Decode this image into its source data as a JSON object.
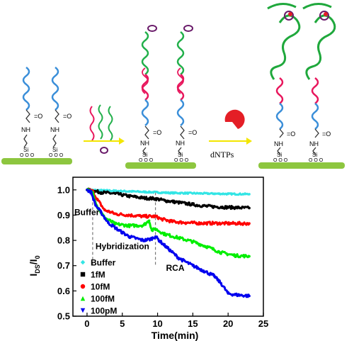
{
  "scheme": {
    "amide_o": "=O",
    "amide_nh": "NH",
    "si": "Si",
    "ooo": "O O O",
    "dntps": "dNTPs",
    "colors": {
      "substrate": "#8dc63f",
      "probe_blue": "#3b8fd9",
      "target_red": "#e8175d",
      "primer_green": "#22b04b",
      "template_purple": "#6a1b6a",
      "polymerase_red": "#e41e26",
      "arrow_yellow": "#f3e600",
      "rca_green": "#1fa83c"
    }
  },
  "chart_data": {
    "type": "scatter",
    "title": "",
    "xlabel": "Time(min)",
    "ylabel_main": "I",
    "ylabel_sub1": "DS",
    "ylabel_mid": "/I",
    "ylabel_sub2": "0",
    "xlim": [
      -2,
      25
    ],
    "ylim": [
      0.5,
      1.05
    ],
    "xticks": [
      0,
      5,
      10,
      15,
      20,
      25
    ],
    "yticks": [
      0.5,
      0.6,
      0.7,
      0.8,
      0.9,
      1.0
    ],
    "xtick_labels": [
      "0",
      "5",
      "10",
      "15",
      "20",
      "25"
    ],
    "ytick_labels": [
      "0.5",
      "0.6",
      "0.7",
      "0.8",
      "0.9",
      "1.0"
    ],
    "legend_position": "bottom-left",
    "annotations": [
      {
        "text": "Buffer",
        "x": -1.8,
        "y": 0.9
      },
      {
        "text": "Hybridization",
        "x": 1.2,
        "y": 0.765
      },
      {
        "text": "RCA",
        "x": 11.2,
        "y": 0.68
      }
    ],
    "event_lines_x": [
      0.8,
      9.7
    ],
    "series": [
      {
        "name": "Buffer",
        "color": "#33e5e5",
        "marker": "diamond",
        "points": [
          [
            0,
            1.0
          ],
          [
            2,
            0.998
          ],
          [
            4,
            0.996
          ],
          [
            6,
            0.994
          ],
          [
            8,
            0.992
          ],
          [
            10,
            0.99
          ],
          [
            12,
            0.988
          ],
          [
            14,
            0.987
          ],
          [
            16,
            0.986
          ],
          [
            18,
            0.985
          ],
          [
            20,
            0.984
          ],
          [
            23,
            0.983
          ]
        ]
      },
      {
        "name": "1fM",
        "color": "#000000",
        "marker": "square",
        "points": [
          [
            0,
            1.0
          ],
          [
            1,
            0.995
          ],
          [
            2,
            0.99
          ],
          [
            4,
            0.985
          ],
          [
            6,
            0.975
          ],
          [
            8,
            0.968
          ],
          [
            9.7,
            0.965
          ],
          [
            11,
            0.958
          ],
          [
            13,
            0.95
          ],
          [
            15,
            0.942
          ],
          [
            17,
            0.935
          ],
          [
            19,
            0.932
          ],
          [
            21,
            0.93
          ],
          [
            23,
            0.928
          ]
        ]
      },
      {
        "name": "10fM",
        "color": "#ff0000",
        "marker": "circle",
        "points": [
          [
            0,
            1.0
          ],
          [
            0.8,
            0.995
          ],
          [
            1.5,
            0.96
          ],
          [
            2.5,
            0.92
          ],
          [
            4,
            0.905
          ],
          [
            6,
            0.9
          ],
          [
            8,
            0.895
          ],
          [
            9.7,
            0.895
          ],
          [
            10.5,
            0.885
          ],
          [
            12,
            0.875
          ],
          [
            14,
            0.87
          ],
          [
            16,
            0.868
          ],
          [
            18,
            0.868
          ],
          [
            20,
            0.867
          ],
          [
            23,
            0.867
          ]
        ]
      },
      {
        "name": "100fM",
        "color": "#00ee00",
        "marker": "triangle-up",
        "points": [
          [
            0,
            1.0
          ],
          [
            0.8,
            0.99
          ],
          [
            1.5,
            0.93
          ],
          [
            2.5,
            0.89
          ],
          [
            4,
            0.865
          ],
          [
            6,
            0.858
          ],
          [
            8,
            0.86
          ],
          [
            8.8,
            0.878
          ],
          [
            9.2,
            0.84
          ],
          [
            9.7,
            0.845
          ],
          [
            11,
            0.825
          ],
          [
            13,
            0.81
          ],
          [
            15,
            0.795
          ],
          [
            17,
            0.775
          ],
          [
            19,
            0.752
          ],
          [
            21,
            0.74
          ],
          [
            23,
            0.737
          ]
        ]
      },
      {
        "name": "100pM",
        "color": "#0000ee",
        "marker": "triangle-down",
        "points": [
          [
            0,
            1.0
          ],
          [
            0.6,
            0.99
          ],
          [
            1.2,
            0.94
          ],
          [
            2,
            0.91
          ],
          [
            3,
            0.87
          ],
          [
            4.5,
            0.84
          ],
          [
            6,
            0.815
          ],
          [
            8,
            0.8
          ],
          [
            9,
            0.805
          ],
          [
            9.7,
            0.815
          ],
          [
            10.3,
            0.798
          ],
          [
            11,
            0.78
          ],
          [
            13,
            0.73
          ],
          [
            15,
            0.7
          ],
          [
            16.5,
            0.68
          ],
          [
            18,
            0.66
          ],
          [
            19,
            0.63
          ],
          [
            20,
            0.59
          ],
          [
            21,
            0.585
          ],
          [
            23,
            0.58
          ]
        ]
      }
    ]
  }
}
